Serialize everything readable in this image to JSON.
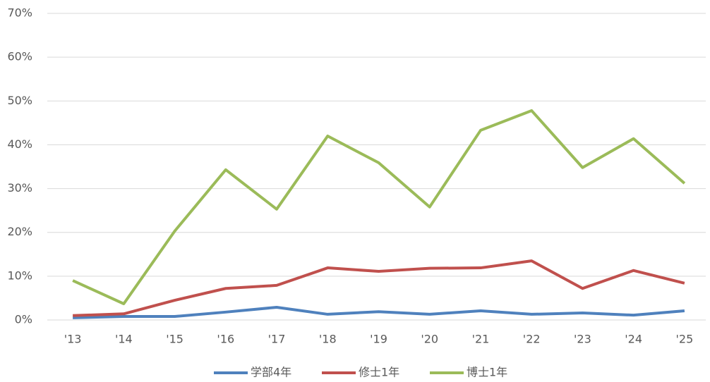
{
  "chart_data": {
    "type": "line",
    "categories": [
      "'13",
      "'14",
      "'15",
      "'16",
      "'17",
      "'18",
      "'19",
      "'20",
      "'21",
      "'22",
      "'23",
      "'24",
      "'25"
    ],
    "series": [
      {
        "name": "学部4年",
        "color": "#4f81bd",
        "values": [
          0.5,
          0.8,
          0.8,
          1.8,
          2.9,
          1.3,
          1.9,
          1.3,
          2.1,
          1.3,
          1.6,
          1.1,
          2.1
        ]
      },
      {
        "name": "修士1年",
        "color": "#c0504d",
        "values": [
          1.0,
          1.4,
          4.5,
          7.2,
          7.9,
          11.9,
          11.1,
          11.8,
          11.9,
          13.5,
          7.2,
          11.3,
          8.4
        ]
      },
      {
        "name": "博士1年",
        "color": "#9bbb59",
        "values": [
          9.0,
          3.7,
          20.3,
          34.3,
          25.3,
          42.0,
          35.9,
          25.8,
          43.3,
          47.8,
          34.8,
          41.4,
          31.2
        ]
      }
    ],
    "ylim": [
      0,
      70
    ],
    "yticks": [
      {
        "value": 0,
        "label": "0%"
      },
      {
        "value": 10,
        "label": "10%"
      },
      {
        "value": 20,
        "label": "20%"
      },
      {
        "value": 30,
        "label": "30%"
      },
      {
        "value": 40,
        "label": "40%"
      },
      {
        "value": 50,
        "label": "50%"
      },
      {
        "value": 60,
        "label": "60%"
      },
      {
        "value": 70,
        "label": "70%"
      }
    ],
    "grid": true,
    "legend": "bottom"
  }
}
